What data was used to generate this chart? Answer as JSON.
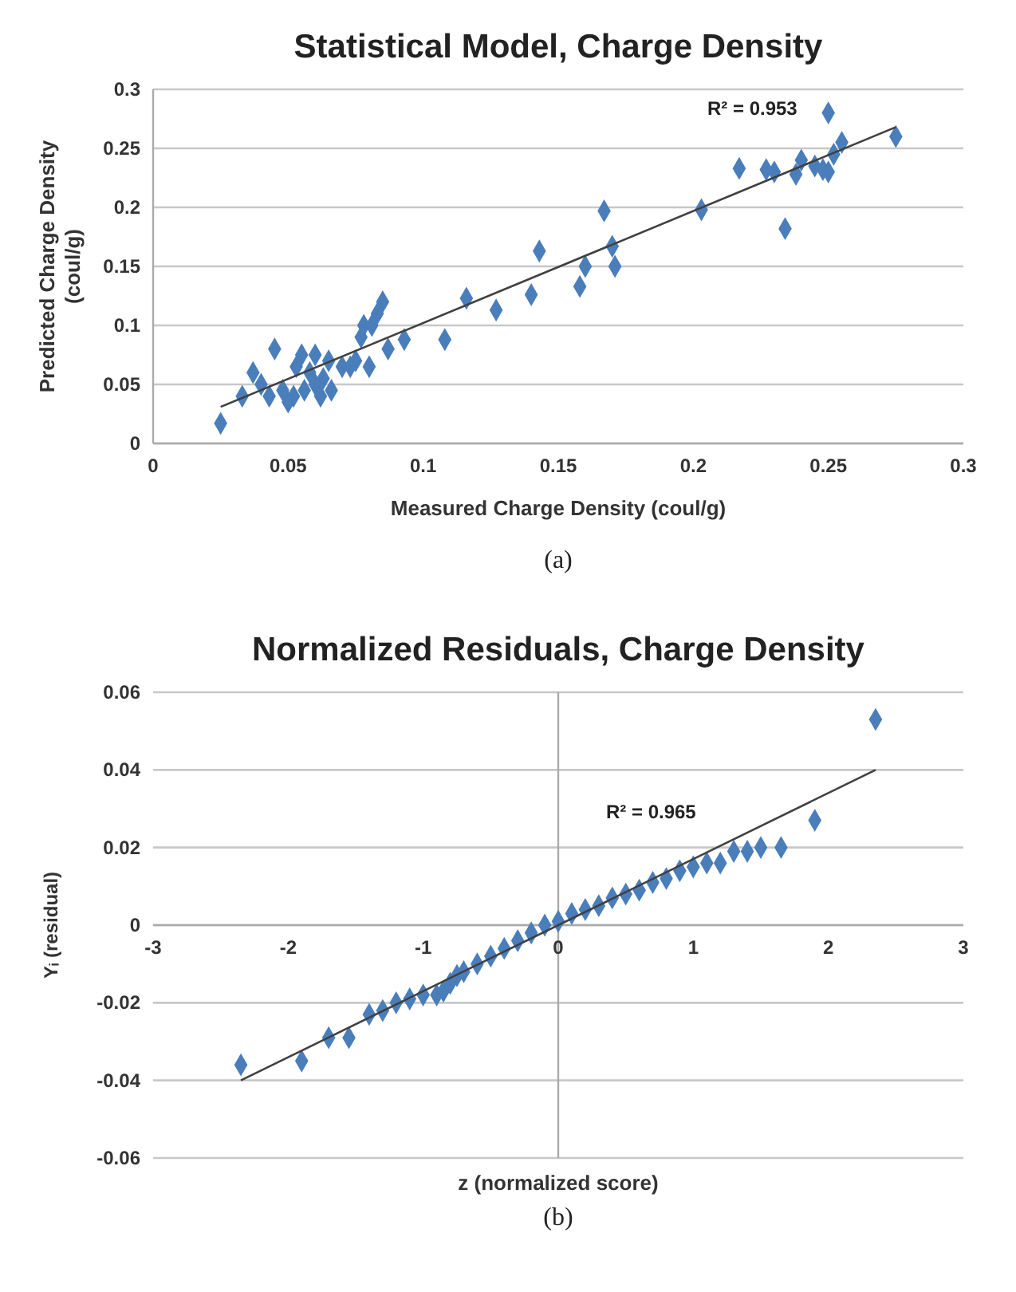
{
  "chart_data": [
    {
      "type": "scatter",
      "title": "Statistical Model, Charge Density",
      "xlabel": "Measured Charge Density (coul/g)",
      "ylabel": "Predicted Charge Density (coul/g)",
      "xlim": [
        0,
        0.3
      ],
      "ylim": [
        0,
        0.3
      ],
      "xticks": [
        0,
        0.05,
        0.1,
        0.15,
        0.2,
        0.25,
        0.3
      ],
      "yticks": [
        0,
        0.05,
        0.1,
        0.15,
        0.2,
        0.25,
        0.3
      ],
      "grid": "y",
      "marker": "diamond",
      "series": [
        {
          "type": "scatter",
          "color": "#4a7ebb",
          "x": [
            0.025,
            0.033,
            0.037,
            0.04,
            0.043,
            0.045,
            0.048,
            0.05,
            0.052,
            0.053,
            0.055,
            0.056,
            0.058,
            0.06,
            0.06,
            0.062,
            0.063,
            0.065,
            0.066,
            0.07,
            0.073,
            0.075,
            0.077,
            0.078,
            0.08,
            0.081,
            0.083,
            0.085,
            0.087,
            0.093,
            0.108,
            0.116,
            0.127,
            0.14,
            0.143,
            0.158,
            0.16,
            0.167,
            0.17,
            0.171,
            0.203,
            0.217,
            0.227,
            0.23,
            0.234,
            0.238,
            0.24,
            0.245,
            0.248,
            0.25,
            0.25,
            0.252,
            0.255,
            0.275
          ],
          "values": [
            0.017,
            0.04,
            0.06,
            0.05,
            0.04,
            0.08,
            0.045,
            0.035,
            0.04,
            0.065,
            0.075,
            0.045,
            0.06,
            0.075,
            0.05,
            0.04,
            0.055,
            0.07,
            0.045,
            0.065,
            0.065,
            0.07,
            0.09,
            0.1,
            0.065,
            0.1,
            0.11,
            0.12,
            0.08,
            0.088,
            0.088,
            0.123,
            0.113,
            0.126,
            0.163,
            0.133,
            0.15,
            0.197,
            0.167,
            0.15,
            0.198,
            0.233,
            0.232,
            0.23,
            0.182,
            0.228,
            0.24,
            0.235,
            0.232,
            0.28,
            0.23,
            0.245,
            0.255,
            0.26
          ]
        },
        {
          "type": "line",
          "color": "#404040",
          "marker": "none",
          "x": [
            0.025,
            0.275
          ],
          "values": [
            0.031,
            0.268
          ]
        }
      ],
      "annotations": [
        "R² = 0.953",
        "(a)"
      ]
    },
    {
      "type": "scatter",
      "title": "Normalized Residuals, Charge Density",
      "xlabel": "z (normalized score)",
      "ylabel": "Yᵢ (residual)",
      "xlim": [
        -3,
        3
      ],
      "ylim": [
        -0.06,
        0.06
      ],
      "xticks": [
        -3,
        -2,
        -1,
        0,
        1,
        2,
        3
      ],
      "yticks": [
        -0.06,
        -0.04,
        -0.02,
        0,
        0.02,
        0.04,
        0.06
      ],
      "grid": "y",
      "marker": "diamond",
      "series": [
        {
          "type": "scatter",
          "color": "#4a7ebb",
          "x": [
            -2.35,
            -1.9,
            -1.7,
            -1.55,
            -1.4,
            -1.3,
            -1.2,
            -1.1,
            -1.0,
            -0.9,
            -0.85,
            -0.8,
            -0.75,
            -0.7,
            -0.6,
            -0.5,
            -0.4,
            -0.3,
            -0.2,
            -0.1,
            0,
            0.1,
            0.2,
            0.3,
            0.4,
            0.5,
            0.6,
            0.7,
            0.8,
            0.9,
            1.0,
            1.1,
            1.2,
            1.3,
            1.4,
            1.5,
            1.65,
            1.9,
            2.35
          ],
          "values": [
            -0.036,
            -0.035,
            -0.029,
            -0.029,
            -0.023,
            -0.022,
            -0.02,
            -0.019,
            -0.018,
            -0.018,
            -0.017,
            -0.015,
            -0.013,
            -0.012,
            -0.01,
            -0.008,
            -0.006,
            -0.004,
            -0.002,
            0,
            0.001,
            0.003,
            0.004,
            0.005,
            0.007,
            0.008,
            0.009,
            0.011,
            0.012,
            0.014,
            0.015,
            0.016,
            0.016,
            0.019,
            0.019,
            0.02,
            0.02,
            0.027,
            0.053
          ]
        },
        {
          "type": "line",
          "color": "#404040",
          "marker": "none",
          "x": [
            -2.35,
            2.35
          ],
          "values": [
            -0.04,
            0.04
          ]
        }
      ],
      "annotations": [
        "R² = 0.965",
        "(b)"
      ]
    }
  ]
}
